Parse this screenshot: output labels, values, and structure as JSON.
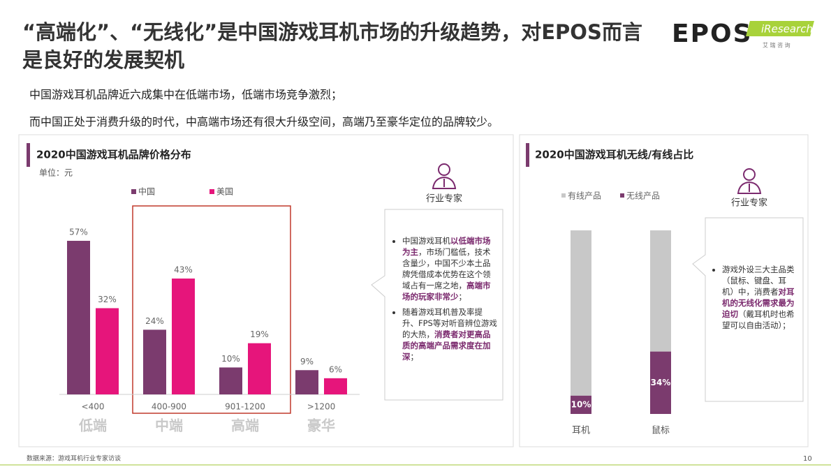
{
  "header": {
    "title": "“高端化”、“无线化”是中国游戏耳机市场的升级趋势，对EPOS而言是良好的发展契机",
    "logo": "EPOS",
    "brand": "iResearch",
    "brand_sub": "艾 瑞 咨 询"
  },
  "summary": [
    "中国游戏耳机品牌近六成集中在低端市场，低端市场竞争激烈；",
    "而中国正处于消费升级的时代，中高端市场还有很大升级空间，高端乃至豪华定位的品牌较少。"
  ],
  "chart_data": [
    {
      "type": "bar",
      "title": "2020中国游戏耳机品牌价格分布",
      "unit": "单位：元",
      "categories": [
        "<400",
        "400-900",
        "901-1200",
        ">1200"
      ],
      "groups": [
        "低端",
        "中端",
        "高端",
        "豪华"
      ],
      "series": [
        {
          "name": "中国",
          "color": "#7b3b6e",
          "values": [
            57,
            24,
            10,
            9
          ],
          "value_labels": [
            "57%",
            "24%",
            "10%",
            "9%"
          ]
        },
        {
          "name": "美国",
          "color": "#e6157b",
          "values": [
            32,
            43,
            19,
            6
          ],
          "value_labels": [
            "32%",
            "43%",
            "19%",
            "6%"
          ]
        }
      ]
    },
    {
      "type": "stacked_bar",
      "title": "2020中国游戏耳机无线/有线占比",
      "categories": [
        "耳机",
        "鼠标"
      ],
      "series": [
        {
          "name": "有线产品",
          "color": "#c8c8c8",
          "values": [
            90,
            66
          ]
        },
        {
          "name": "无线产品",
          "color": "#7b3b6e",
          "values": [
            10,
            34
          ],
          "value_labels": [
            "10%",
            "34%"
          ]
        }
      ]
    }
  ],
  "experts": [
    {
      "label": "行业专家",
      "bullets": [
        [
          {
            "text": "中国游戏耳机",
            "em": false
          },
          {
            "text": "以低端市场为主",
            "em": true
          },
          {
            "text": "，市场门槛低，技术含量少，中国不少本土品牌凭借成本优势在这个领域占有一席之地，",
            "em": false
          },
          {
            "text": "高端市场的玩家非常少",
            "em": true
          },
          {
            "text": "；",
            "em": false
          }
        ],
        [
          {
            "text": "随着游戏耳机普及率提升、FPS等对听音辨位游戏的大热，",
            "em": false
          },
          {
            "text": "消费者对更高品质的高端产品需求度在加深",
            "em": true
          },
          {
            "text": "；",
            "em": false
          }
        ]
      ]
    },
    {
      "label": "行业专家",
      "bullets": [
        [
          {
            "text": "游戏外设三大主品类（鼠标、键盘、耳机）中，消费者",
            "em": false
          },
          {
            "text": "对耳机的无线化需求最为迫切",
            "em": true
          },
          {
            "text": "（戴耳机时也希望可以自由活动）；",
            "em": false
          }
        ]
      ]
    }
  ],
  "source": "数据来源：游戏耳机行业专家访谈",
  "page_number": "10"
}
